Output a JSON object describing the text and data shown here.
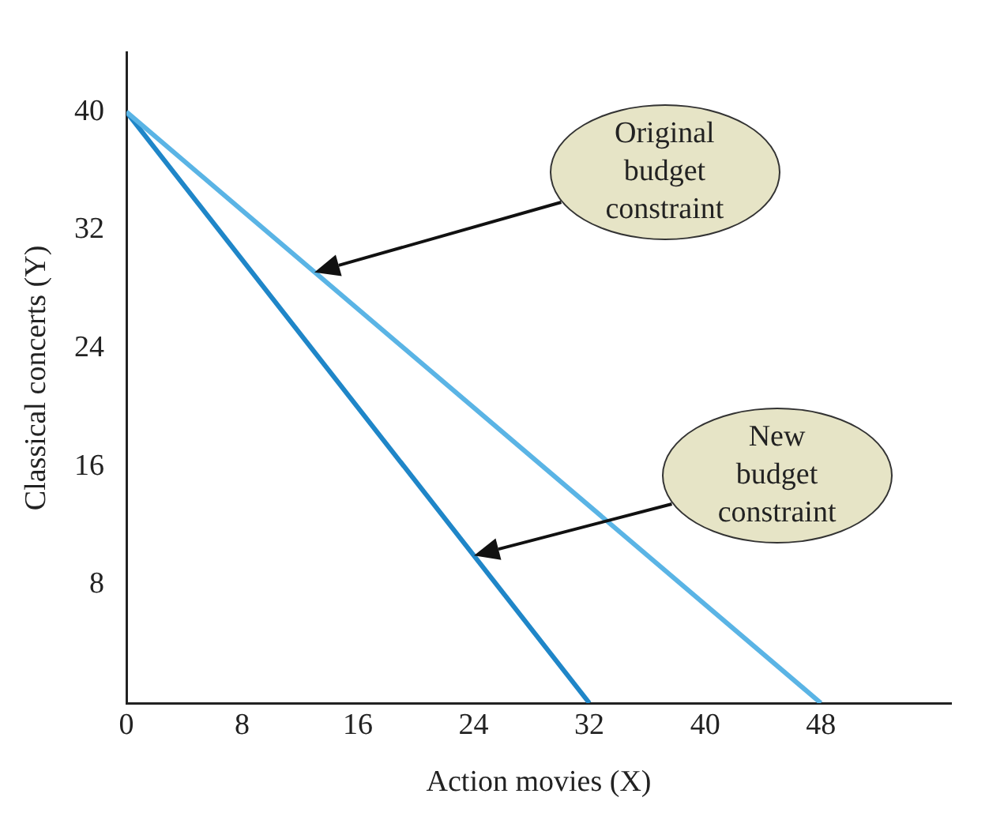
{
  "chart_data": {
    "type": "line",
    "xlabel": "Action movies (X)",
    "ylabel": "Classical concerts (Y)",
    "series": [
      {
        "color": "#5ab4e5",
        "x": [
          0,
          48
        ],
        "values": [
          40,
          0
        ]
      },
      {
        "color": "#1f86c8",
        "x": [
          0,
          32
        ],
        "values": [
          40,
          0
        ]
      }
    ],
    "xlim": [
      0,
      57
    ],
    "xticks": [
      0,
      8,
      16,
      24,
      32,
      40,
      48
    ],
    "ylim": [
      0,
      44
    ],
    "yticks": [
      8,
      16,
      24,
      32,
      40
    ],
    "grid": false,
    "legend": false,
    "annotations": [
      "Original budget constraint",
      "New budget constraint"
    ]
  }
}
